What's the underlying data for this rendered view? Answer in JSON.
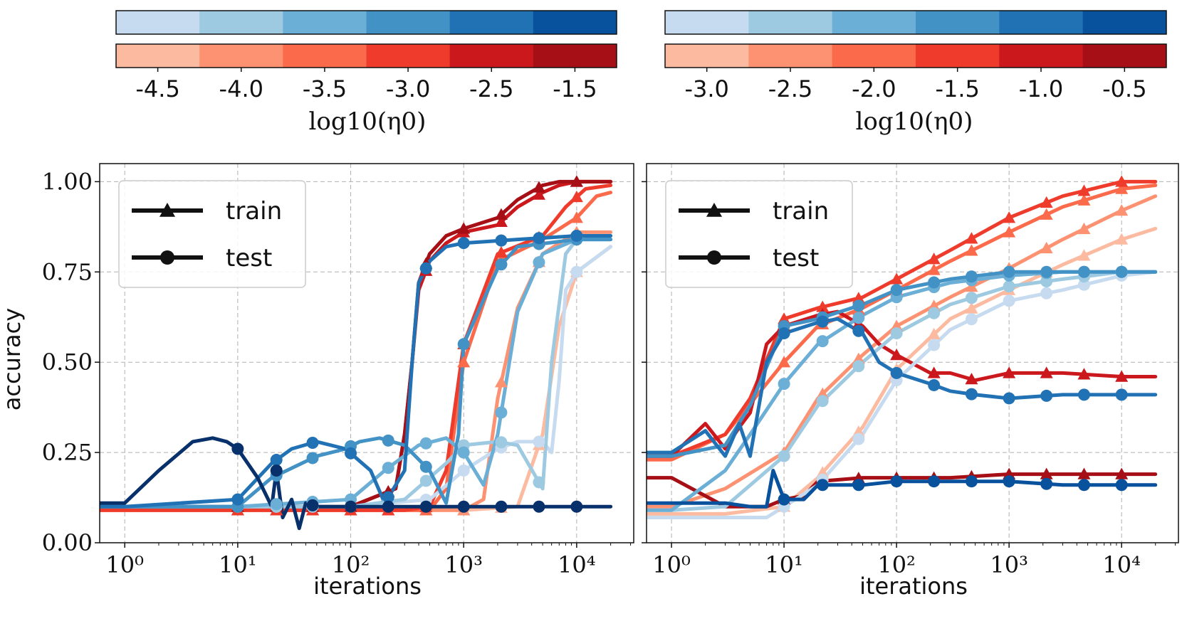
{
  "axis_labels": {
    "y": "accuracy",
    "x": "iterations"
  },
  "colorbar_label": "log10(η0)",
  "blues": [
    "#c6dbef",
    "#9ecae1",
    "#6baed6",
    "#4292c6",
    "#2171b5",
    "#08519c"
  ],
  "reds": [
    "#fcbba1",
    "#fc9272",
    "#fb6a4a",
    "#ef3b2c",
    "#cb181d",
    "#a50f15"
  ],
  "chart_data": [
    {
      "type": "line",
      "panel": "left",
      "xscale": "log",
      "xlim": [
        0.6,
        32000
      ],
      "ylim": [
        0,
        1.05
      ],
      "xticks": [
        {
          "v": 1,
          "label": "10⁰"
        },
        {
          "v": 10,
          "label": "10¹"
        },
        {
          "v": 100,
          "label": "10²"
        },
        {
          "v": 1000,
          "label": "10³"
        },
        {
          "v": 10000,
          "label": "10⁴"
        }
      ],
      "yticks": [
        {
          "v": 0,
          "label": "0.00"
        },
        {
          "v": 0.25,
          "label": "0.25"
        },
        {
          "v": 0.5,
          "label": "0.50"
        },
        {
          "v": 0.75,
          "label": "0.75"
        },
        {
          "v": 1.0,
          "label": "1.00"
        }
      ],
      "colorbar": {
        "ticks": [
          "-4.5",
          "-4.0",
          "-3.5",
          "-3.0",
          "-2.5",
          "-1.5"
        ],
        "label": "log10(η0)"
      },
      "legend": {
        "position": "top-left",
        "entries": [
          "train",
          "test"
        ]
      },
      "series": [
        {
          "name": "train η0=10^-4.5",
          "color": "#fcbba1",
          "marker": "triangle",
          "x": [
            0.6,
            1,
            10,
            100,
            1000,
            3000,
            5000,
            7000,
            10000,
            20000
          ],
          "y": [
            0.09,
            0.09,
            0.09,
            0.09,
            0.09,
            0.1,
            0.3,
            0.6,
            0.75,
            0.82
          ]
        },
        {
          "name": "train η0=10^-4.0",
          "color": "#fc9272",
          "marker": "triangle",
          "x": [
            0.6,
            1,
            10,
            100,
            500,
            1000,
            1500,
            2000,
            3000,
            5000,
            10000,
            20000
          ],
          "y": [
            0.09,
            0.09,
            0.09,
            0.09,
            0.09,
            0.09,
            0.12,
            0.4,
            0.65,
            0.8,
            0.86,
            0.86
          ]
        },
        {
          "name": "train η0=10^-3.5",
          "color": "#fb6a4a",
          "marker": "triangle",
          "x": [
            0.6,
            1,
            10,
            100,
            300,
            500,
            700,
            1000,
            2000,
            5000,
            10000,
            15000,
            20000
          ],
          "y": [
            0.09,
            0.09,
            0.09,
            0.09,
            0.09,
            0.09,
            0.15,
            0.5,
            0.78,
            0.84,
            0.9,
            0.96,
            0.97
          ]
        },
        {
          "name": "train η0=10^-3.0",
          "color": "#ef3b2c",
          "marker": "triangle",
          "x": [
            0.6,
            1,
            10,
            100,
            300,
            500,
            700,
            1000,
            2000,
            5000,
            8000,
            12000,
            20000
          ],
          "y": [
            0.09,
            0.09,
            0.09,
            0.09,
            0.09,
            0.1,
            0.2,
            0.55,
            0.8,
            0.85,
            0.93,
            0.98,
            0.99
          ]
        },
        {
          "name": "train η0=10^-2.5",
          "color": "#cb181d",
          "marker": "triangle",
          "x": [
            0.6,
            1,
            10,
            100,
            250,
            300,
            350,
            400,
            500,
            700,
            1000,
            2000,
            3000,
            5000,
            7000,
            10000,
            20000
          ],
          "y": [
            0.1,
            0.1,
            0.1,
            0.1,
            0.15,
            0.3,
            0.5,
            0.7,
            0.78,
            0.83,
            0.86,
            0.88,
            0.93,
            0.97,
            0.99,
            1.0,
            1.0
          ]
        },
        {
          "name": "train η0=10^-1.5",
          "color": "#a50f15",
          "marker": "triangle",
          "x": [
            0.6,
            1,
            10,
            100,
            250,
            300,
            350,
            400,
            500,
            700,
            1000,
            2000,
            3000,
            5000,
            7000,
            10000,
            20000
          ],
          "y": [
            0.1,
            0.1,
            0.1,
            0.1,
            0.15,
            0.3,
            0.5,
            0.72,
            0.8,
            0.85,
            0.87,
            0.9,
            0.95,
            0.99,
            1.0,
            1.0,
            1.0
          ]
        },
        {
          "name": "test η0=10^-4.5",
          "color": "#c6dbef",
          "marker": "circle",
          "x": [
            0.6,
            1,
            10,
            100,
            500,
            1000,
            2000,
            3000,
            5000,
            6000,
            7000,
            8000,
            10000,
            20000
          ],
          "y": [
            0.1,
            0.1,
            0.1,
            0.1,
            0.12,
            0.2,
            0.26,
            0.28,
            0.28,
            0.25,
            0.45,
            0.7,
            0.75,
            0.82
          ]
        },
        {
          "name": "test η0=10^-4.0",
          "color": "#9ecae1",
          "marker": "circle",
          "x": [
            0.6,
            1,
            10,
            100,
            300,
            700,
            1000,
            2000,
            3000,
            5000,
            6000,
            8000,
            10000,
            20000
          ],
          "y": [
            0.1,
            0.1,
            0.1,
            0.1,
            0.12,
            0.22,
            0.27,
            0.28,
            0.27,
            0.15,
            0.5,
            0.8,
            0.84,
            0.84
          ]
        },
        {
          "name": "test η0=10^-3.5",
          "color": "#6baed6",
          "marker": "circle",
          "x": [
            0.6,
            1,
            10,
            100,
            200,
            400,
            700,
            1000,
            1500,
            2000,
            3000,
            5000,
            10000,
            20000
          ],
          "y": [
            0.1,
            0.1,
            0.1,
            0.12,
            0.2,
            0.27,
            0.29,
            0.25,
            0.16,
            0.3,
            0.64,
            0.8,
            0.84,
            0.84
          ]
        },
        {
          "name": "test η0=10^-3.0",
          "color": "#4292c6",
          "marker": "circle",
          "x": [
            0.6,
            1,
            10,
            20,
            50,
            90,
            120,
            180,
            300,
            500,
            700,
            900,
            1000,
            2000,
            3000,
            10000,
            20000
          ],
          "y": [
            0.1,
            0.1,
            0.1,
            0.18,
            0.24,
            0.26,
            0.28,
            0.29,
            0.27,
            0.2,
            0.11,
            0.3,
            0.55,
            0.76,
            0.82,
            0.84,
            0.84
          ]
        },
        {
          "name": "test η0=10^-2.5",
          "color": "#2171b5",
          "marker": "circle",
          "x": [
            0.6,
            1,
            10,
            20,
            30,
            50,
            90,
            150,
            200,
            300,
            350,
            400,
            500,
            700,
            1000,
            3000,
            10000,
            20000
          ],
          "y": [
            0.1,
            0.1,
            0.12,
            0.22,
            0.26,
            0.28,
            0.26,
            0.2,
            0.11,
            0.2,
            0.5,
            0.72,
            0.78,
            0.82,
            0.83,
            0.84,
            0.85,
            0.85
          ]
        },
        {
          "name": "test η0=10^-1.5",
          "color": "#08306b",
          "marker": "circle",
          "x": [
            0.6,
            1,
            2,
            4,
            6,
            8,
            10,
            15,
            20,
            22,
            25,
            30,
            35,
            40,
            50,
            100,
            1000,
            10000,
            20000
          ],
          "y": [
            0.11,
            0.11,
            0.2,
            0.28,
            0.29,
            0.28,
            0.26,
            0.18,
            0.1,
            0.2,
            0.07,
            0.12,
            0.04,
            0.11,
            0.1,
            0.1,
            0.1,
            0.1,
            0.1
          ]
        }
      ]
    },
    {
      "type": "line",
      "panel": "right",
      "xscale": "log",
      "xlim": [
        0.6,
        32000
      ],
      "ylim": [
        0,
        1.05
      ],
      "xticks": [
        {
          "v": 1,
          "label": "10⁰"
        },
        {
          "v": 10,
          "label": "10¹"
        },
        {
          "v": 100,
          "label": "10²"
        },
        {
          "v": 1000,
          "label": "10³"
        },
        {
          "v": 10000,
          "label": "10⁴"
        }
      ],
      "yticks": [
        {
          "v": 0,
          "label": ""
        },
        {
          "v": 0.25,
          "label": ""
        },
        {
          "v": 0.5,
          "label": ""
        },
        {
          "v": 0.75,
          "label": ""
        },
        {
          "v": 1.0,
          "label": ""
        }
      ],
      "colorbar": {
        "ticks": [
          "-3.0",
          "-2.5",
          "-2.0",
          "-1.5",
          "-1.0",
          "-0.5"
        ],
        "label": "log10(η0)"
      },
      "legend": {
        "position": "top-left",
        "entries": [
          "train",
          "test"
        ]
      },
      "series": [
        {
          "name": "train η0=10^-3.0",
          "color": "#fcbba1",
          "marker": "triangle",
          "x": [
            0.6,
            1,
            3,
            10,
            20,
            50,
            100,
            300,
            1000,
            3000,
            10000,
            20000
          ],
          "y": [
            0.08,
            0.08,
            0.08,
            0.1,
            0.18,
            0.32,
            0.48,
            0.62,
            0.7,
            0.77,
            0.84,
            0.87
          ]
        },
        {
          "name": "train η0=10^-2.5",
          "color": "#fc9272",
          "marker": "triangle",
          "x": [
            0.6,
            1,
            3,
            10,
            20,
            50,
            100,
            300,
            1000,
            3000,
            10000,
            20000
          ],
          "y": [
            0.1,
            0.1,
            0.15,
            0.25,
            0.4,
            0.52,
            0.6,
            0.68,
            0.76,
            0.84,
            0.92,
            0.96
          ]
        },
        {
          "name": "train η0=10^-2.0",
          "color": "#fb6a4a",
          "marker": "triangle",
          "x": [
            0.6,
            1,
            3,
            10,
            20,
            50,
            100,
            300,
            1000,
            3000,
            10000,
            20000
          ],
          "y": [
            0.23,
            0.23,
            0.3,
            0.5,
            0.6,
            0.65,
            0.7,
            0.78,
            0.86,
            0.93,
            0.98,
            0.99
          ]
        },
        {
          "name": "train η0=10^-1.5",
          "color": "#ef3b2c",
          "marker": "triangle",
          "x": [
            0.6,
            1,
            3,
            5,
            10,
            20,
            50,
            100,
            300,
            1000,
            3000,
            10000,
            20000
          ],
          "y": [
            0.24,
            0.24,
            0.3,
            0.4,
            0.62,
            0.65,
            0.68,
            0.73,
            0.81,
            0.9,
            0.96,
            1.0,
            1.0
          ]
        },
        {
          "name": "train η0=10^-1.0",
          "color": "#cb181d",
          "marker": "triangle",
          "x": [
            0.6,
            1,
            2,
            3,
            4,
            5,
            7,
            10,
            20,
            30,
            50,
            70,
            100,
            200,
            300,
            500,
            1000,
            3000,
            10000,
            20000
          ],
          "y": [
            0.24,
            0.24,
            0.33,
            0.26,
            0.32,
            0.36,
            0.55,
            0.6,
            0.63,
            0.64,
            0.6,
            0.55,
            0.52,
            0.47,
            0.47,
            0.45,
            0.47,
            0.47,
            0.46,
            0.46
          ]
        },
        {
          "name": "train η0=10^-0.5",
          "color": "#a50f15",
          "marker": "triangle",
          "x": [
            0.6,
            1,
            3,
            5,
            7,
            10,
            15,
            20,
            50,
            100,
            300,
            1000,
            3000,
            10000,
            20000
          ],
          "y": [
            0.18,
            0.18,
            0.1,
            0.1,
            0.1,
            0.12,
            0.13,
            0.17,
            0.18,
            0.18,
            0.18,
            0.19,
            0.19,
            0.19,
            0.19
          ]
        },
        {
          "name": "test η0=10^-3.0",
          "color": "#c6dbef",
          "marker": "circle",
          "x": [
            0.6,
            1,
            3,
            7,
            10,
            20,
            50,
            100,
            300,
            1000,
            3000,
            10000,
            20000
          ],
          "y": [
            0.07,
            0.07,
            0.07,
            0.07,
            0.1,
            0.16,
            0.3,
            0.45,
            0.59,
            0.67,
            0.7,
            0.74,
            0.75
          ]
        },
        {
          "name": "test η0=10^-2.5",
          "color": "#9ecae1",
          "marker": "circle",
          "x": [
            0.6,
            1,
            3,
            10,
            20,
            50,
            100,
            300,
            1000,
            3000,
            10000,
            20000
          ],
          "y": [
            0.09,
            0.09,
            0.1,
            0.24,
            0.38,
            0.5,
            0.58,
            0.66,
            0.71,
            0.73,
            0.75,
            0.75
          ]
        },
        {
          "name": "test η0=10^-2.0",
          "color": "#6baed6",
          "marker": "circle",
          "x": [
            0.6,
            1,
            3,
            5,
            10,
            20,
            50,
            100,
            300,
            1000,
            3000,
            10000,
            20000
          ],
          "y": [
            0.09,
            0.09,
            0.2,
            0.3,
            0.44,
            0.55,
            0.63,
            0.68,
            0.72,
            0.74,
            0.75,
            0.75,
            0.75
          ]
        },
        {
          "name": "test η0=10^-1.5",
          "color": "#4292c6",
          "marker": "circle",
          "x": [
            0.6,
            1,
            3,
            5,
            10,
            20,
            50,
            100,
            300,
            1000,
            3000,
            10000,
            20000
          ],
          "y": [
            0.24,
            0.24,
            0.27,
            0.38,
            0.6,
            0.62,
            0.66,
            0.7,
            0.73,
            0.75,
            0.75,
            0.75,
            0.75
          ]
        },
        {
          "name": "test η0=10^-1.0",
          "color": "#2171b5",
          "marker": "circle",
          "x": [
            0.6,
            1,
            2,
            3,
            4,
            5,
            7,
            10,
            20,
            30,
            50,
            70,
            100,
            200,
            300,
            500,
            1000,
            3000,
            10000,
            20000
          ],
          "y": [
            0.25,
            0.25,
            0.31,
            0.24,
            0.33,
            0.24,
            0.5,
            0.58,
            0.61,
            0.62,
            0.58,
            0.5,
            0.47,
            0.44,
            0.42,
            0.41,
            0.4,
            0.41,
            0.41,
            0.41
          ]
        },
        {
          "name": "test η0=10^-0.5",
          "color": "#08519c",
          "marker": "circle",
          "x": [
            0.6,
            1,
            2,
            3,
            5,
            7,
            8,
            10,
            15,
            20,
            50,
            100,
            300,
            1000,
            3000,
            10000,
            20000
          ],
          "y": [
            0.11,
            0.11,
            0.11,
            0.11,
            0.1,
            0.1,
            0.2,
            0.12,
            0.12,
            0.16,
            0.16,
            0.17,
            0.17,
            0.17,
            0.16,
            0.16,
            0.16
          ]
        }
      ]
    }
  ]
}
